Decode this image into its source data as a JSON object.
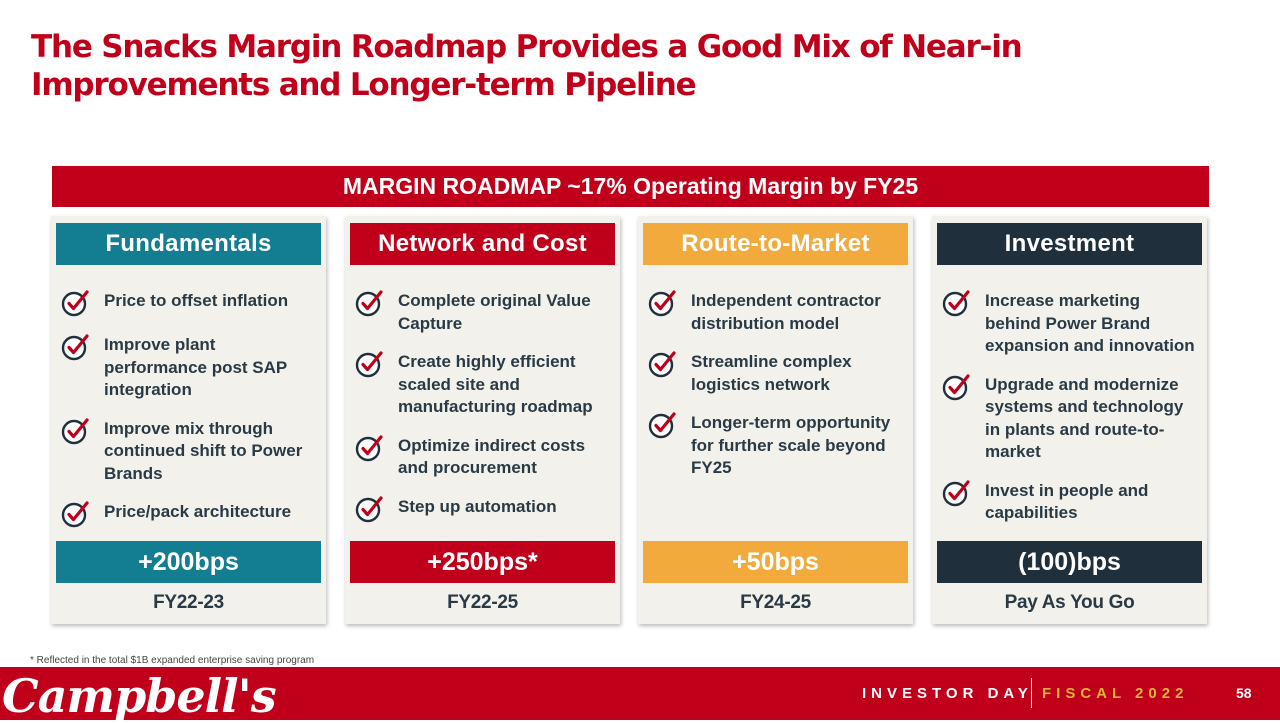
{
  "title": "The Snacks Margin Roadmap Provides a Good Mix of Near-in Improvements and Longer-term Pipeline",
  "banner": "MARGIN ROADMAP ~17% Operating Margin by FY25",
  "colors": {
    "brand_red": "#c0001b",
    "teal": "#137d92",
    "orange": "#f2aa3c",
    "navy": "#1f2f3c",
    "card_bg": "#f3f1ec"
  },
  "columns": [
    {
      "header": "Fundamentals",
      "color": "#137d92",
      "items": [
        "Price to offset inflation",
        "Improve plant performance post SAP integration",
        "Improve mix through continued shift to Power Brands",
        "Price/pack architecture"
      ],
      "bps": "+200bps",
      "period": "FY22-23"
    },
    {
      "header": "Network and Cost",
      "color": "#c0001b",
      "items": [
        "Complete original Value Capture",
        "Create highly efficient scaled site and manufacturing roadmap",
        "Optimize indirect costs and procurement",
        "Step up automation"
      ],
      "bps": "+250bps*",
      "period": "FY22-25"
    },
    {
      "header": "Route-to-Market",
      "color": "#f2aa3c",
      "items": [
        "Independent contractor distribution model",
        "Streamline complex logistics network",
        "Longer-term opportunity for further scale beyond FY25"
      ],
      "bps": "+50bps",
      "period": "FY24-25"
    },
    {
      "header": "Investment",
      "color": "#1f2f3c",
      "items": [
        "Increase marketing behind Power Brand expansion and innovation",
        "Upgrade and modernize systems and technology in plants and route-to-market",
        "Invest in people and capabilities"
      ],
      "bps": "(100)bps",
      "period": "Pay As You Go"
    }
  ],
  "footnote": "* Reflected in the total $1B expanded enterprise saving program",
  "footer": {
    "logo": "Campbell's",
    "event": "INVESTOR DAY",
    "fiscal": "FISCAL 2022",
    "page": "58"
  }
}
